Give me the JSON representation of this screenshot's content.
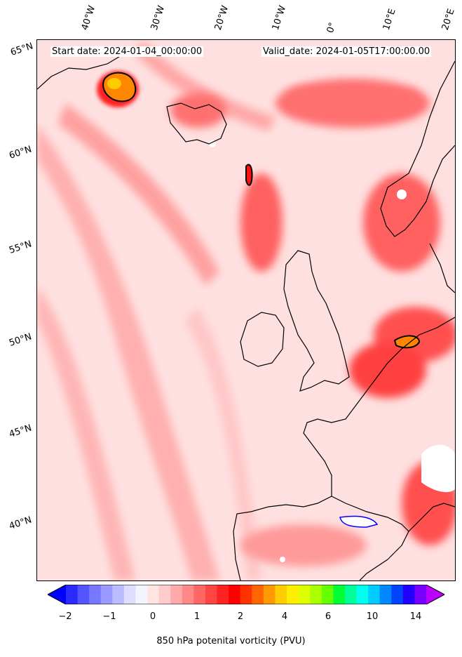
{
  "header": {
    "start_date": "Start date: 2024-01-04_00:00:00",
    "valid_date": "Valid_date: 2024-01-05T17:00:00.00"
  },
  "longitude_labels": [
    "40°W",
    "30°W",
    "20°W",
    "10°W",
    "0°",
    "10°E",
    "20°E"
  ],
  "latitude_labels": [
    "65°N",
    "60°N",
    "55°N",
    "50°N",
    "45°N",
    "40°N"
  ],
  "colorbar": {
    "label": "850 hPa potenital vorticity (PVU)",
    "ticks": [
      "−2",
      "−1",
      "0",
      "1",
      "2",
      "4",
      "6",
      "10",
      "14"
    ],
    "colors": [
      "#0000ff",
      "#2a2aff",
      "#5555ff",
      "#7777ff",
      "#9999ff",
      "#bbbbff",
      "#ddddff",
      "#f4f4ff",
      "#ffe4e4",
      "#ffcccc",
      "#ffaaaa",
      "#ff8888",
      "#ff6666",
      "#ff4444",
      "#ff2222",
      "#ff0000",
      "#ff3300",
      "#ff6600",
      "#ff9900",
      "#ffcc00",
      "#ffee00",
      "#ddff00",
      "#aaff00",
      "#66ff00",
      "#00ff33",
      "#00ff99",
      "#00ffee",
      "#00ccff",
      "#0088ff",
      "#0044ff",
      "#2200ff",
      "#7700ff",
      "#bb00ff"
    ]
  }
}
